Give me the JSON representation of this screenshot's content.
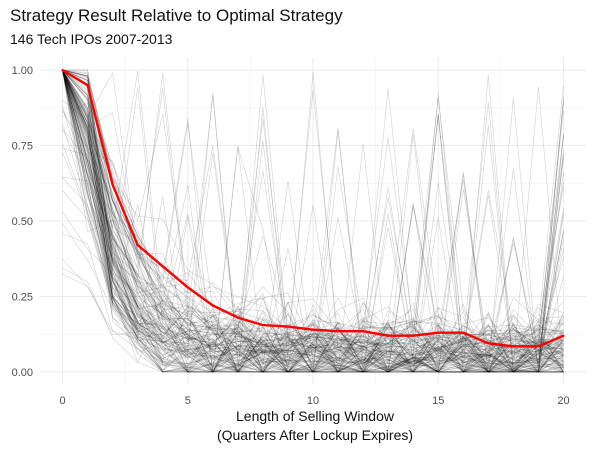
{
  "chart_data": {
    "type": "line",
    "title": "Strategy Result Relative to Optimal Strategy",
    "subtitle": "146 Tech IPOs 2007-2013",
    "xlabel_lines": [
      "Length of Selling Window",
      "(Quarters After Lockup Expires)"
    ],
    "ylabel": "",
    "xlim": [
      -0.9,
      20.9
    ],
    "ylim": [
      -0.04,
      1.04
    ],
    "x_ticks": [
      0,
      5,
      10,
      15,
      20
    ],
    "y_ticks": [
      0.0,
      0.25,
      0.5,
      0.75,
      1.0
    ],
    "y_tick_labels": [
      "0.00",
      "0.25",
      "0.50",
      "0.75",
      "1.00"
    ],
    "grid": true,
    "n_ipos": 146,
    "background_series_color": "#000000",
    "highlight_color": "#ff0000",
    "highlight_series": {
      "x": [
        0,
        1,
        2,
        3,
        4,
        5,
        6,
        7,
        8,
        9,
        10,
        11,
        12,
        13,
        14,
        15,
        16,
        17,
        18,
        19,
        20
      ],
      "y": [
        1.0,
        0.95,
        0.62,
        0.42,
        0.35,
        0.28,
        0.22,
        0.18,
        0.155,
        0.15,
        0.14,
        0.135,
        0.135,
        0.12,
        0.12,
        0.13,
        0.13,
        0.095,
        0.085,
        0.085,
        0.12
      ]
    }
  }
}
